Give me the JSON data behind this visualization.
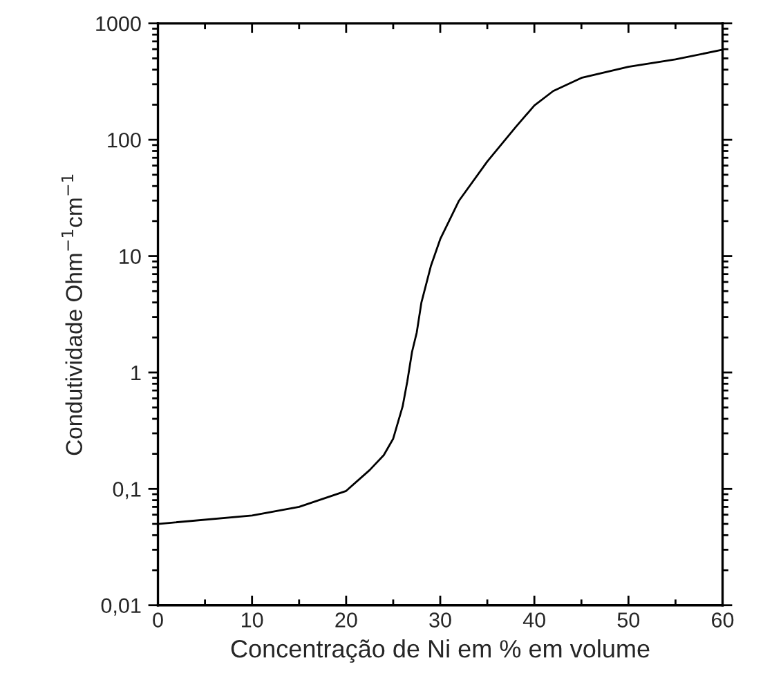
{
  "chart_data": {
    "type": "line",
    "xlabel": "Concentração de Ni em % em volume",
    "ylabel": "Condutividade Ohm$^{−1}$cm$^{−1}$",
    "x": [
      0,
      10,
      15,
      20,
      22.5,
      24,
      25,
      26,
      26.5,
      27,
      27.5,
      28,
      29,
      30,
      32,
      35,
      38,
      40,
      42,
      45,
      50,
      55,
      60
    ],
    "series": [
      {
        "color": "#000000",
        "values": [
          0.05,
          0.059,
          0.07,
          0.096,
          0.145,
          0.195,
          0.27,
          0.51,
          0.84,
          1.5,
          2.2,
          4.0,
          8.2,
          14,
          30,
          65,
          128,
          197,
          262,
          340,
          423,
          490,
          594
        ]
      }
    ],
    "log": "y",
    "xlim": [
      0,
      60
    ],
    "ylim": [
      0.01,
      1000
    ],
    "xticks": [
      0,
      10,
      20,
      30,
      40,
      50,
      60
    ],
    "yticks": [
      {
        "value": 0.01,
        "label": "0,01"
      },
      {
        "value": 0.1,
        "label": "0,1"
      },
      1,
      10,
      100,
      1000
    ],
    "grid": false,
    "legend": false,
    "marker": "none",
    "line_style": "solid"
  }
}
